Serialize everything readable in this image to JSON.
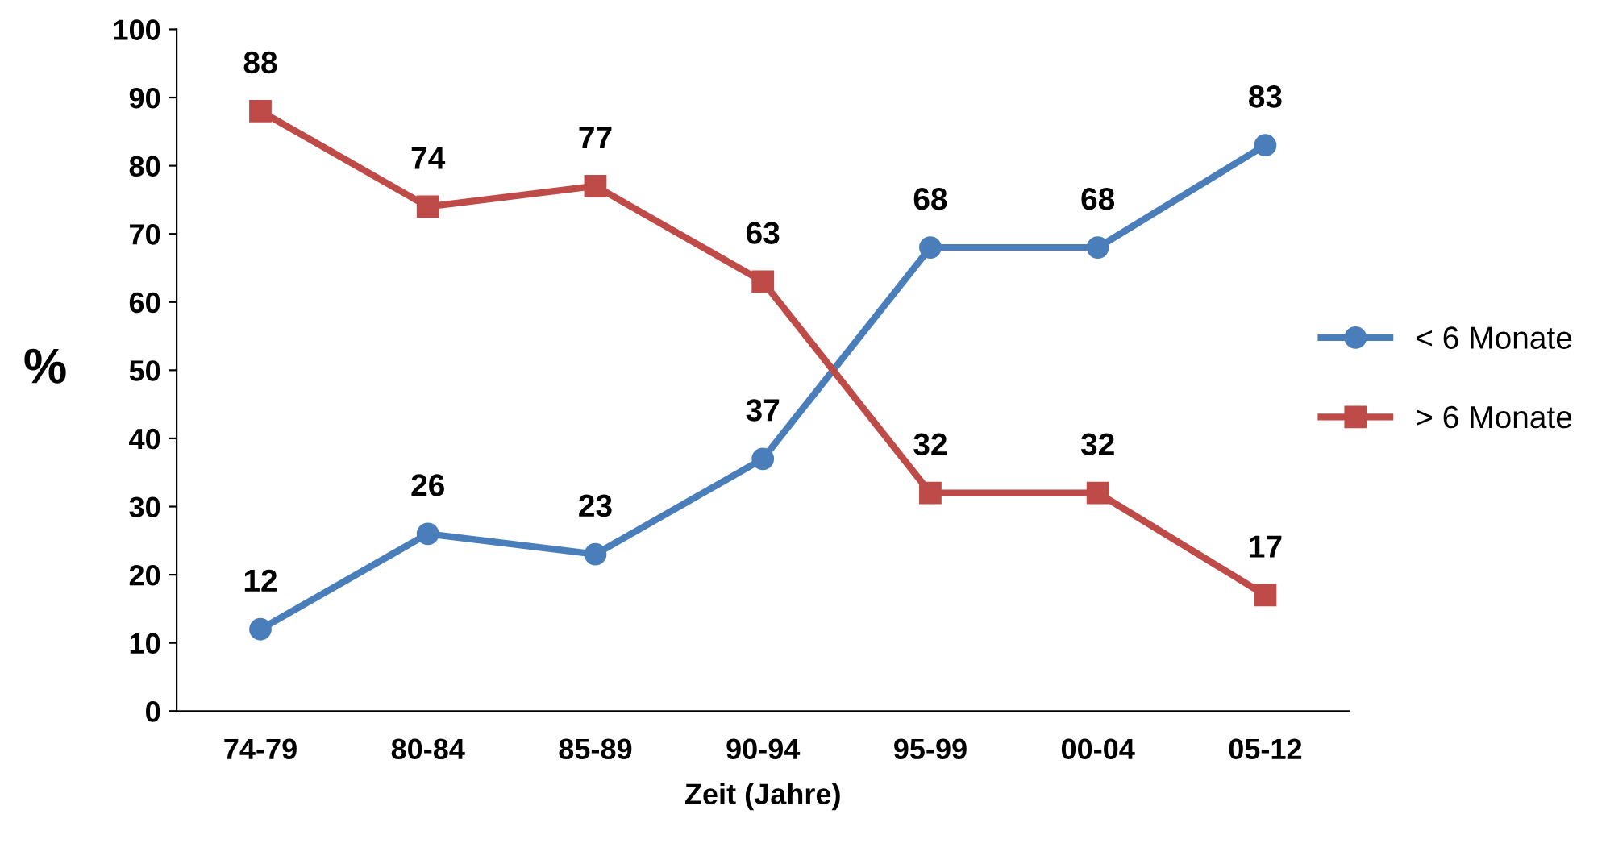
{
  "chart_data": {
    "type": "line",
    "xlabel": "Zeit (Jahre)",
    "ylabel": "%",
    "categories": [
      "74-79",
      "80-84",
      "85-89",
      "90-94",
      "95-99",
      "00-04",
      "05-12"
    ],
    "series": [
      {
        "name": "< 6 Monate",
        "color": "#4a7ebb",
        "marker": "circle",
        "values": [
          12,
          26,
          23,
          37,
          68,
          68,
          83
        ]
      },
      {
        "name": "> 6 Monate",
        "color": "#be4b48",
        "marker": "square",
        "values": [
          88,
          74,
          77,
          63,
          32,
          32,
          17
        ]
      }
    ],
    "ylim": [
      0,
      100
    ],
    "yticks": [
      0,
      10,
      20,
      30,
      40,
      50,
      60,
      70,
      80,
      90,
      100
    ],
    "data_labels": true,
    "legend": "right",
    "grid": false,
    "line_style": "solid"
  }
}
